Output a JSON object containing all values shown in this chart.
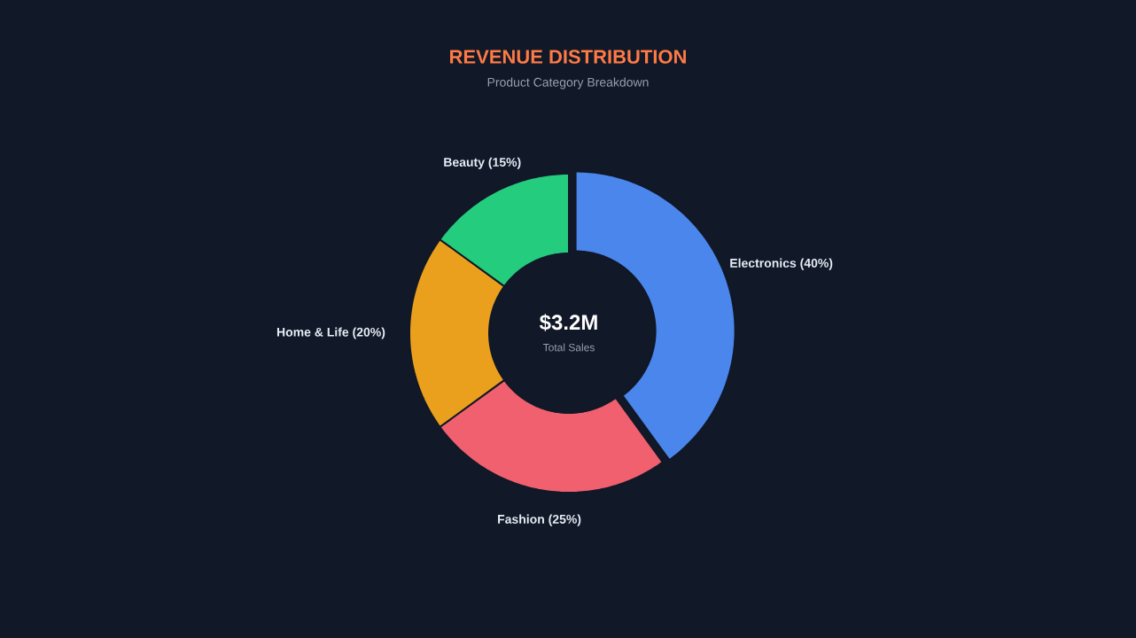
{
  "chart_data": {
    "type": "donut",
    "title": "REVENUE DISTRIBUTION",
    "subtitle": "Product Category Breakdown",
    "categories": [
      "Electronics (40%)",
      "Fashion (25%)",
      "Home & Life (20%)",
      "Beauty (15%)"
    ],
    "values": [
      40,
      25,
      20,
      15
    ],
    "colors": [
      "#4a86ec",
      "#f0606e",
      "#eaa01c",
      "#24cc7e"
    ],
    "annotations": [
      "$3.2M",
      "Total Sales"
    ]
  }
}
